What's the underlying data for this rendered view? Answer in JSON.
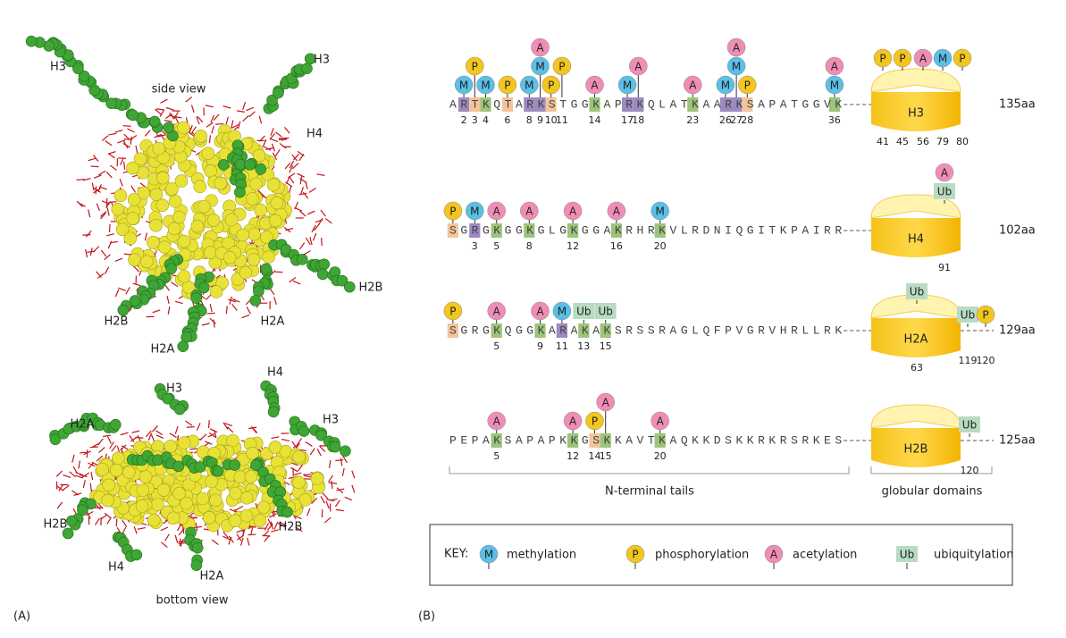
{
  "panel_a": {
    "label": "(A)",
    "side_view": {
      "caption": "side view",
      "labels": [
        "H3",
        "H3",
        "H4",
        "H2B",
        "H2B",
        "H2A",
        "H2A"
      ]
    },
    "bottom_view": {
      "caption": "bottom view",
      "labels": [
        "H3",
        "H4",
        "H2A",
        "H3",
        "H2B",
        "H2B",
        "H4",
        "H2A"
      ]
    }
  },
  "panel_b": {
    "label": "(B)",
    "rows": [
      {
        "histone": "H3",
        "length": "135aa",
        "sequence": "ARTKQTARKSTGGKAPRKQLATKAARKSAPATGGVK",
        "sites": [
          {
            "number": 2,
            "number_color": "#222222",
            "box": "#9d8ac0",
            "marks": [
              "M"
            ]
          },
          {
            "number": 3,
            "number_color": "#222222",
            "box": "#f4c49a",
            "marks": [
              "P"
            ]
          },
          {
            "number": 4,
            "number_color": "#222222",
            "box": "#9cc47a",
            "marks": [
              "M"
            ]
          },
          {
            "number": 6,
            "number_color": "#222222",
            "box": "#f4c49a",
            "marks": [
              "P"
            ]
          },
          {
            "number": 8,
            "number_color": "#222222",
            "box": "#9d8ac0",
            "marks": [
              "M"
            ]
          },
          {
            "number": 9,
            "number_color": "#d9252a",
            "box": "#9d8ac0",
            "marks": [
              "M",
              "A"
            ]
          },
          {
            "number": 10,
            "number_color": "#222222",
            "box": "#f4c49a",
            "marks": [
              "P"
            ]
          },
          {
            "number": 11,
            "number_color": "#222222",
            "box": null,
            "marks": [
              "P"
            ]
          },
          {
            "number": 14,
            "number_color": "#2a9fd8",
            "box": "#9cc47a",
            "marks": [
              "A"
            ]
          },
          {
            "number": 17,
            "number_color": "#222222",
            "box": "#9d8ac0",
            "marks": [
              "M"
            ]
          },
          {
            "number": 18,
            "number_color": "#2a9fd8",
            "box": "#9d8ac0",
            "marks": [
              "A"
            ]
          },
          {
            "number": 23,
            "number_color": "#2a9fd8",
            "box": "#9cc47a",
            "marks": [
              "A"
            ]
          },
          {
            "number": 26,
            "number_color": "#222222",
            "box": "#9d8ac0",
            "marks": [
              "M"
            ]
          },
          {
            "number": 27,
            "number_color": "#d9252a",
            "box": "#9d8ac0",
            "marks": [
              "M",
              "A"
            ]
          },
          {
            "number": 28,
            "number_color": "#222222",
            "box": "#f4c49a",
            "marks": [
              "P"
            ]
          },
          {
            "number": 36,
            "number_color": "#222222",
            "box": "#9cc47a",
            "marks": [
              "M",
              "A"
            ]
          }
        ],
        "domain_sites": [
          {
            "number": 41,
            "marks": [
              "P"
            ]
          },
          {
            "number": 45,
            "marks": [
              "P"
            ]
          },
          {
            "number": 56,
            "marks": [
              "A"
            ]
          },
          {
            "number": 79,
            "marks": [
              "M"
            ]
          },
          {
            "number": 80,
            "marks": [
              "P"
            ]
          }
        ]
      },
      {
        "histone": "H4",
        "length": "102aa",
        "sequence": "SGRGKGGKGLGKGGAKRHRKVLRDNIQGITKPAIRR",
        "sites": [
          {
            "number": null,
            "number_color": "#222222",
            "box": "#f4c49a",
            "marks": [
              "P"
            ]
          },
          {
            "number": 3,
            "number_color": "#222222",
            "box": "#9d8ac0",
            "marks": [
              "M"
            ]
          },
          {
            "number": 5,
            "number_color": "#2a9fd8",
            "box": "#9cc47a",
            "marks": [
              "A"
            ]
          },
          {
            "number": 8,
            "number_color": "#2a9fd8",
            "box": "#9cc47a",
            "marks": [
              "A"
            ]
          },
          {
            "number": 12,
            "number_color": "#2a9fd8",
            "box": "#9cc47a",
            "marks": [
              "A"
            ]
          },
          {
            "number": 16,
            "number_color": "#2a9fd8",
            "box": "#9cc47a",
            "marks": [
              "A"
            ]
          },
          {
            "number": 20,
            "number_color": "#d9252a",
            "box": "#9cc47a",
            "marks": [
              "M"
            ]
          }
        ],
        "domain_sites": [
          {
            "number": 91,
            "marks": [
              "Ub",
              "A"
            ]
          }
        ]
      },
      {
        "histone": "H2A",
        "length": "129aa",
        "sequence": "SGRGKQGGKARAKAKSRSSRAGLQFPVGRVHRLLRK",
        "sites": [
          {
            "number": null,
            "number_color": "#222222",
            "box": "#f4c49a",
            "marks": [
              "P"
            ]
          },
          {
            "number": 5,
            "number_color": "#2a9fd8",
            "box": "#9cc47a",
            "marks": [
              "A"
            ]
          },
          {
            "number": 9,
            "number_color": "#2a9fd8",
            "box": "#9cc47a",
            "marks": [
              "A"
            ]
          },
          {
            "number": 11,
            "number_color": "#222222",
            "box": "#9d8ac0",
            "marks": [
              "M"
            ]
          },
          {
            "number": 13,
            "number_color": "#222222",
            "box": "#9cc47a",
            "marks": [
              "Ub"
            ]
          },
          {
            "number": 15,
            "number_color": "#222222",
            "box": "#9cc47a",
            "marks": [
              "Ub"
            ]
          }
        ],
        "domain_sites": [
          {
            "number": 63,
            "marks": [
              "Ub"
            ]
          },
          {
            "number": 119,
            "marks": [
              "Ub"
            ]
          },
          {
            "number": 120,
            "marks": [
              "P"
            ]
          }
        ]
      },
      {
        "histone": "H2B",
        "length": "125aa",
        "sequence": "PEPAKSAPAPKKGSKKAVTKAQKKDSKKRKRSRKES",
        "sites": [
          {
            "number": 5,
            "number_color": "#2a9fd8",
            "box": "#9cc47a",
            "marks": [
              "A"
            ]
          },
          {
            "number": 12,
            "number_color": "#2a9fd8",
            "box": "#9cc47a",
            "marks": [
              "A"
            ]
          },
          {
            "number": 14,
            "number_color": "#222222",
            "box": "#f4c49a",
            "marks": [
              "P"
            ]
          },
          {
            "number": 15,
            "number_color": "#2a9fd8",
            "box": "#9cc47a",
            "marks": [
              "A"
            ]
          },
          {
            "number": 20,
            "number_color": "#2a9fd8",
            "box": "#9cc47a",
            "marks": [
              "A"
            ]
          }
        ],
        "domain_sites": [
          {
            "number": 120,
            "marks": [
              "Ub"
            ]
          }
        ]
      }
    ],
    "brackets": {
      "tails": "N-terminal tails",
      "domains": "globular domains"
    },
    "key": {
      "title": "KEY:",
      "items": [
        {
          "symbol": "M",
          "label": "methylation",
          "color": "#5bbfe6"
        },
        {
          "symbol": "P",
          "label": "phosphorylation",
          "color": "#f3c61e"
        },
        {
          "symbol": "A",
          "label": "acetylation",
          "color": "#f08db6"
        },
        {
          "symbol": "Ub",
          "label": "ubiquitylation",
          "color": "#b8dcc2"
        }
      ]
    }
  }
}
